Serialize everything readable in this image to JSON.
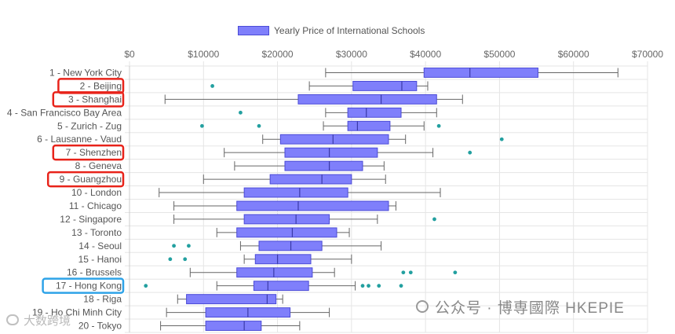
{
  "legend": {
    "label": "Yearly Price of International Schools"
  },
  "watermark": {
    "text": "公众号 · 博専國際 HKEPIE",
    "tag": "大数跨境"
  },
  "colors": {
    "box_fill": "#7f7ffb",
    "box_stroke": "#4b4bd6",
    "whisker": "#666666",
    "outlier": "#23a0a0",
    "highlight_red": "#e8231a",
    "highlight_blue": "#2ea3e8",
    "grid": "#e5e5e5"
  },
  "chart_data": {
    "type": "boxplot",
    "orientation": "horizontal",
    "xlim": [
      0,
      70000
    ],
    "x_ticks": [
      0,
      10000,
      20000,
      30000,
      40000,
      50000,
      60000,
      70000
    ],
    "x_tick_labels": [
      "$0",
      "$10000",
      "$20000",
      "$30000",
      "$40000",
      "$50000",
      "$60000",
      "$70000"
    ],
    "x_axis_position": "top",
    "grid": true,
    "legend_position": "top",
    "series_name": "Yearly Price of International Schools",
    "categories": [
      {
        "label": "1 - New York City",
        "min": 26500,
        "q1": 39800,
        "median": 46000,
        "q3": 55200,
        "max": 66000,
        "outliers": [],
        "highlight": null
      },
      {
        "label": "2 - Beijing",
        "min": 24300,
        "q1": 30200,
        "median": 36800,
        "q3": 38800,
        "max": 40300,
        "outliers": [
          11200
        ],
        "highlight": "red"
      },
      {
        "label": "3 - Shanghai",
        "min": 4800,
        "q1": 22800,
        "median": 34000,
        "q3": 41500,
        "max": 45000,
        "outliers": [],
        "highlight": "red"
      },
      {
        "label": "4 - San Francisco Bay Area",
        "min": 26500,
        "q1": 29500,
        "median": 32000,
        "q3": 36700,
        "max": 41500,
        "outliers": [
          15000
        ],
        "highlight": null
      },
      {
        "label": "5 - Zurich - Zug",
        "min": 26200,
        "q1": 29500,
        "median": 30800,
        "q3": 35200,
        "max": 39800,
        "outliers": [
          9800,
          17500,
          41800
        ],
        "highlight": null
      },
      {
        "label": "6 - Lausanne - Vaud",
        "min": 18000,
        "q1": 20400,
        "median": 27500,
        "q3": 35000,
        "max": 37300,
        "outliers": [
          50300
        ],
        "highlight": null
      },
      {
        "label": "7 - Shenzhen",
        "min": 12800,
        "q1": 21000,
        "median": 27000,
        "q3": 33500,
        "max": 41000,
        "outliers": [
          46000
        ],
        "highlight": "red"
      },
      {
        "label": "8 - Geneva",
        "min": 14200,
        "q1": 21000,
        "median": 27000,
        "q3": 31500,
        "max": 34400,
        "outliers": [],
        "highlight": null
      },
      {
        "label": "9 - Guangzhou",
        "min": 10000,
        "q1": 19000,
        "median": 26000,
        "q3": 30000,
        "max": 34600,
        "outliers": [],
        "highlight": "red"
      },
      {
        "label": "10 - London",
        "min": 4000,
        "q1": 15500,
        "median": 23000,
        "q3": 29500,
        "max": 42000,
        "outliers": [],
        "highlight": null
      },
      {
        "label": "11 - Chicago",
        "min": 6000,
        "q1": 14500,
        "median": 22800,
        "q3": 35000,
        "max": 36000,
        "outliers": [],
        "highlight": null
      },
      {
        "label": "12 - Singapore",
        "min": 6000,
        "q1": 15500,
        "median": 22500,
        "q3": 27000,
        "max": 33500,
        "outliers": [
          41200
        ],
        "highlight": null
      },
      {
        "label": "13 - Toronto",
        "min": 11800,
        "q1": 14500,
        "median": 22000,
        "q3": 28000,
        "max": 29700,
        "outliers": [],
        "highlight": null
      },
      {
        "label": "14 - Seoul",
        "min": 15000,
        "q1": 17500,
        "median": 21800,
        "q3": 26000,
        "max": 34000,
        "outliers": [
          6000,
          8000
        ],
        "highlight": null
      },
      {
        "label": "15 - Hanoi",
        "min": 15500,
        "q1": 17000,
        "median": 20000,
        "q3": 24500,
        "max": 30000,
        "outliers": [
          5500,
          7500
        ],
        "highlight": null
      },
      {
        "label": "16 - Brussels",
        "min": 8200,
        "q1": 14500,
        "median": 19500,
        "q3": 24700,
        "max": 27700,
        "outliers": [
          37000,
          38000,
          44000
        ],
        "highlight": null
      },
      {
        "label": "17 - Hong Kong",
        "min": 11800,
        "q1": 16800,
        "median": 18700,
        "q3": 24200,
        "max": 30500,
        "outliers": [
          2200,
          31500,
          32300,
          33700,
          36700
        ],
        "highlight": "blue"
      },
      {
        "label": "18 - Riga",
        "min": 6500,
        "q1": 7700,
        "median": 18600,
        "q3": 19800,
        "max": 20700,
        "outliers": [],
        "highlight": null
      },
      {
        "label": "19 - Ho Chi Minh City",
        "min": 5000,
        "q1": 10300,
        "median": 16000,
        "q3": 21700,
        "max": 27000,
        "outliers": [],
        "highlight": null
      },
      {
        "label": "20 - Tokyo",
        "min": 4200,
        "q1": 10300,
        "median": 15500,
        "q3": 17800,
        "max": 23000,
        "outliers": [],
        "highlight": null
      }
    ]
  }
}
